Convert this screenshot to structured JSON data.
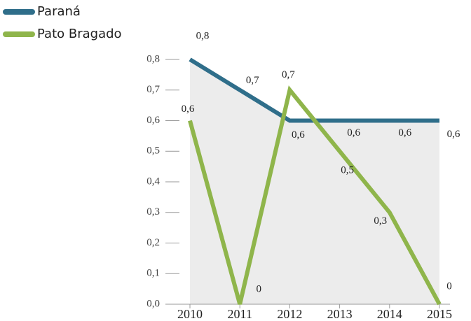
{
  "chart_data": {
    "type": "line",
    "categories": [
      "2010",
      "2011",
      "2012",
      "2013",
      "2014",
      "2015"
    ],
    "series": [
      {
        "name": "Paraná",
        "color": "#2f6e8a",
        "values": [
          0.8,
          0.7,
          0.6,
          0.6,
          0.6,
          0.6
        ],
        "value_labels": [
          "0,8",
          "0,7",
          "0,6",
          "0,6",
          "0,6",
          "0,6"
        ]
      },
      {
        "name": "Pato Bragado",
        "color": "#8fb54b",
        "values": [
          0.6,
          0,
          0.7,
          0.5,
          0.3,
          0
        ],
        "value_labels": [
          "0,6",
          "0",
          "0,7",
          "0,5",
          "0,3",
          "0"
        ]
      }
    ],
    "ylim": [
      0,
      0.8
    ],
    "yticks": [
      {
        "value": 0,
        "label": "0,0"
      },
      {
        "value": 0.1,
        "label": "0,1"
      },
      {
        "value": 0.2,
        "label": "0,2"
      },
      {
        "value": 0.3,
        "label": "0,3"
      },
      {
        "value": 0.4,
        "label": "0,4"
      },
      {
        "value": 0.5,
        "label": "0,5"
      },
      {
        "value": 0.6,
        "label": "0,6"
      },
      {
        "value": 0.7,
        "label": "0,7"
      },
      {
        "value": 0.8,
        "label": "0,8"
      }
    ],
    "legend": "top-left"
  }
}
